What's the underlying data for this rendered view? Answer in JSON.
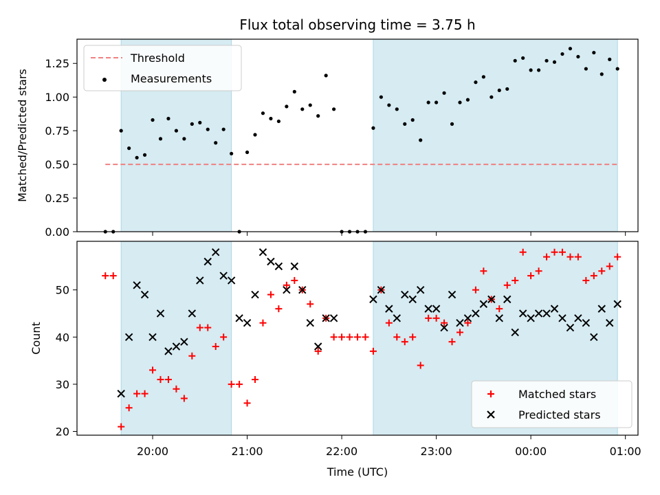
{
  "chart_data": [
    {
      "type": "scatter",
      "title": "Flux total observing time = 3.75 h",
      "xlabel": "",
      "ylabel": "Matched/Predicted stars",
      "ylim": [
        0,
        1.43
      ],
      "yticks": [
        0.0,
        0.25,
        0.5,
        0.75,
        1.0,
        1.25
      ],
      "ytick_labels": [
        "0.00",
        "0.25",
        "0.50",
        "0.75",
        "1.00",
        "1.25"
      ],
      "grid": false,
      "legend": {
        "placement": "top-left",
        "entries": [
          "Threshold",
          "Measurements"
        ]
      },
      "shaded_intervals": [
        [
          "19:40",
          "20:50"
        ],
        [
          "22:20",
          "00:55"
        ]
      ],
      "threshold": {
        "name": "Threshold",
        "value": 0.5,
        "x_range": [
          "19:30",
          "00:55"
        ],
        "color": "#f08080"
      },
      "series": [
        {
          "name": "Measurements",
          "color": "#000000",
          "x": [
            "19:30",
            "19:35",
            "19:40",
            "19:45",
            "19:50",
            "19:55",
            "20:00",
            "20:05",
            "20:10",
            "20:15",
            "20:20",
            "20:25",
            "20:30",
            "20:35",
            "20:40",
            "20:45",
            "20:50",
            "20:55",
            "21:00",
            "21:05",
            "21:10",
            "21:15",
            "21:20",
            "21:25",
            "21:30",
            "21:35",
            "21:40",
            "21:45",
            "21:50",
            "21:55",
            "22:00",
            "22:05",
            "22:10",
            "22:15",
            "22:20",
            "22:25",
            "22:30",
            "22:35",
            "22:40",
            "22:45",
            "22:50",
            "22:55",
            "23:00",
            "23:05",
            "23:10",
            "23:15",
            "23:20",
            "23:25",
            "23:30",
            "23:35",
            "23:40",
            "23:45",
            "23:50",
            "23:55",
            "00:00",
            "00:05",
            "00:10",
            "00:15",
            "00:20",
            "00:25",
            "00:30",
            "00:35",
            "00:40",
            "00:45",
            "00:50",
            "00:55"
          ],
          "y": [
            0.0,
            0.0,
            0.75,
            0.62,
            0.55,
            0.57,
            0.83,
            0.69,
            0.84,
            0.75,
            0.69,
            0.8,
            0.81,
            0.76,
            0.66,
            0.76,
            0.58,
            0.0,
            0.59,
            0.72,
            0.88,
            0.84,
            0.82,
            0.93,
            1.04,
            0.91,
            0.94,
            0.86,
            1.16,
            0.91,
            0.0,
            0.0,
            0.0,
            0.0,
            0.77,
            1.0,
            0.94,
            0.91,
            0.8,
            0.83,
            0.68,
            0.96,
            0.96,
            1.03,
            0.8,
            0.96,
            0.98,
            1.11,
            1.15,
            1.0,
            1.05,
            1.06,
            1.27,
            1.29,
            1.2,
            1.2,
            1.27,
            1.26,
            1.32,
            1.36,
            1.3,
            1.21,
            1.33,
            1.17,
            1.28,
            1.21
          ]
        }
      ]
    },
    {
      "type": "scatter",
      "title": "",
      "xlabel": "Time (UTC)",
      "ylabel": "Count",
      "xlim": [
        "19:12",
        "01:08"
      ],
      "xticks": [
        "20:00",
        "21:00",
        "22:00",
        "23:00",
        "00:00",
        "01:00"
      ],
      "ylim": [
        19.2,
        60.3
      ],
      "yticks": [
        20,
        30,
        40,
        50
      ],
      "grid": false,
      "legend": {
        "placement": "bottom-right",
        "entries": [
          "Matched stars",
          "Predicted stars"
        ]
      },
      "shaded_intervals": [
        [
          "19:40",
          "20:50"
        ],
        [
          "22:20",
          "00:55"
        ]
      ],
      "series": [
        {
          "name": "Matched stars",
          "marker": "+",
          "color": "#ff0000",
          "x": [
            "19:30",
            "19:35",
            "19:40",
            "19:45",
            "19:50",
            "19:55",
            "20:00",
            "20:05",
            "20:10",
            "20:15",
            "20:20",
            "20:25",
            "20:30",
            "20:35",
            "20:40",
            "20:45",
            "20:50",
            "20:55",
            "21:00",
            "21:05",
            "21:10",
            "21:15",
            "21:20",
            "21:25",
            "21:30",
            "21:35",
            "21:40",
            "21:45",
            "21:50",
            "21:55",
            "22:00",
            "22:05",
            "22:10",
            "22:15",
            "22:20",
            "22:25",
            "22:30",
            "22:35",
            "22:40",
            "22:45",
            "22:50",
            "22:55",
            "23:00",
            "23:05",
            "23:10",
            "23:15",
            "23:20",
            "23:25",
            "23:30",
            "23:35",
            "23:40",
            "23:45",
            "23:50",
            "23:55",
            "00:00",
            "00:05",
            "00:10",
            "00:15",
            "00:20",
            "00:25",
            "00:30",
            "00:35",
            "00:40",
            "00:45",
            "00:50",
            "00:55"
          ],
          "y": [
            53,
            53,
            21,
            25,
            28,
            28,
            33,
            31,
            31,
            29,
            27,
            36,
            42,
            42,
            38,
            40,
            30,
            30,
            26,
            31,
            43,
            49,
            46,
            51,
            52,
            50,
            47,
            37,
            44,
            40,
            40,
            40,
            40,
            40,
            37,
            50,
            43,
            40,
            39,
            40,
            34,
            44,
            44,
            43,
            39,
            41,
            43,
            50,
            54,
            48,
            46,
            51,
            52,
            58,
            53,
            54,
            57,
            58,
            58,
            57,
            57,
            52,
            53,
            54,
            55,
            57
          ]
        },
        {
          "name": "Predicted stars",
          "marker": "x",
          "color": "#000000",
          "x": [
            "19:40",
            "19:45",
            "19:50",
            "19:55",
            "20:00",
            "20:05",
            "20:10",
            "20:15",
            "20:20",
            "20:25",
            "20:30",
            "20:35",
            "20:40",
            "20:45",
            "20:50",
            "20:55",
            "21:00",
            "21:05",
            "21:10",
            "21:15",
            "21:20",
            "21:25",
            "21:30",
            "21:35",
            "21:40",
            "21:45",
            "21:50",
            "21:55",
            "22:20",
            "22:25",
            "22:30",
            "22:35",
            "22:40",
            "22:45",
            "22:50",
            "22:55",
            "23:00",
            "23:05",
            "23:10",
            "23:15",
            "23:20",
            "23:25",
            "23:30",
            "23:35",
            "23:40",
            "23:45",
            "23:50",
            "23:55",
            "00:00",
            "00:05",
            "00:10",
            "00:15",
            "00:20",
            "00:25",
            "00:30",
            "00:35",
            "00:40",
            "00:45",
            "00:50",
            "00:55"
          ],
          "y": [
            28,
            40,
            51,
            49,
            40,
            45,
            37,
            38,
            39,
            45,
            52,
            56,
            58,
            53,
            52,
            44,
            43,
            49,
            58,
            56,
            55,
            50,
            55,
            50,
            43,
            38,
            44,
            44,
            48,
            50,
            46,
            44,
            49,
            48,
            50,
            46,
            46,
            42,
            49,
            43,
            44,
            45,
            47,
            48,
            44,
            48,
            41,
            45,
            44,
            45,
            45,
            46,
            44,
            42,
            44,
            43,
            40,
            46,
            43,
            47
          ]
        }
      ]
    }
  ]
}
